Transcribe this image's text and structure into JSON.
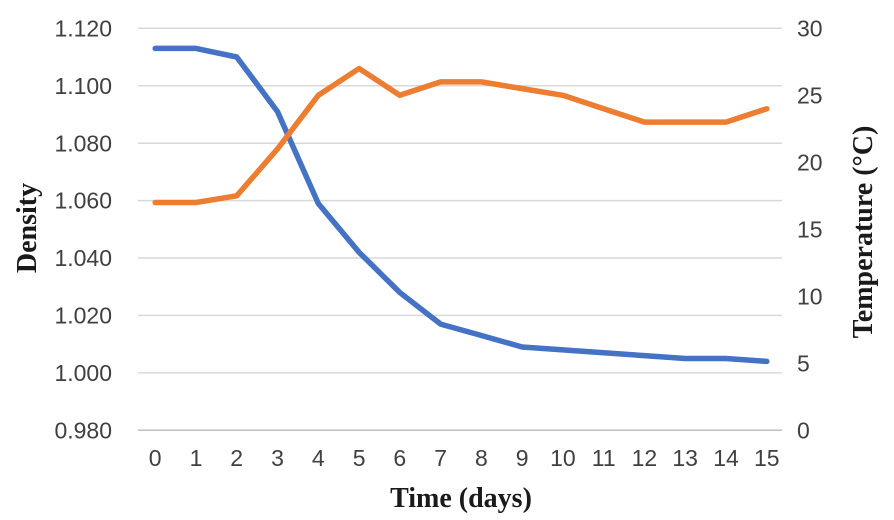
{
  "chart_data": {
    "type": "line",
    "title": "",
    "xlabel": "Time (days)",
    "x": [
      0,
      1,
      2,
      3,
      4,
      5,
      6,
      7,
      8,
      9,
      10,
      11,
      12,
      13,
      14,
      15
    ],
    "x_tick_labels": [
      "0",
      "1",
      "2",
      "3",
      "4",
      "5",
      "6",
      "7",
      "8",
      "9",
      "10",
      "11",
      "12",
      "13",
      "14",
      "15"
    ],
    "left_axis": {
      "label": "Density",
      "min": 0.98,
      "max": 1.12,
      "step": 0.02,
      "tick_labels": [
        "1.120",
        "1.100",
        "1.080",
        "1.060",
        "1.040",
        "1.020",
        "1.000",
        "0.980"
      ]
    },
    "right_axis": {
      "label": "Temperature (°C)",
      "min": 0,
      "max": 30,
      "step": 5,
      "tick_labels": [
        "30",
        "25",
        "20",
        "15",
        "10",
        "5",
        "0"
      ]
    },
    "series": [
      {
        "name": "Density",
        "axis": "left",
        "color": "#4472C4",
        "values": [
          1.113,
          1.113,
          1.11,
          1.091,
          1.059,
          1.042,
          1.028,
          1.017,
          1.013,
          1.009,
          1.008,
          1.007,
          1.006,
          1.005,
          1.005,
          1.004
        ]
      },
      {
        "name": "Temperature",
        "axis": "right",
        "color": "#ED7D31",
        "values": [
          17,
          17,
          17.5,
          21,
          25,
          27,
          25,
          26,
          26,
          25.5,
          25,
          24,
          23,
          23,
          23,
          24
        ]
      }
    ],
    "grid": true,
    "legend": "none",
    "gridline_color": "#D9D9D9",
    "axis_line_color": "#BFBFBF"
  }
}
